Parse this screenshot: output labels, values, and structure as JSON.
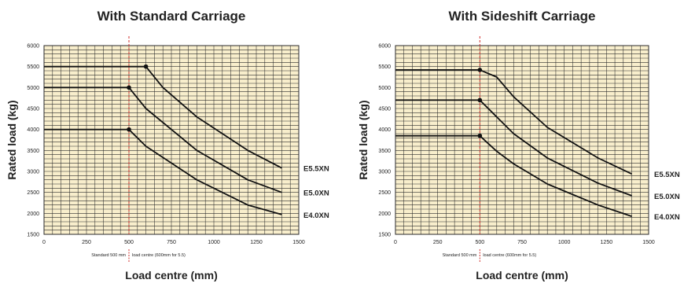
{
  "colors": {
    "plot_bg": "#f8eecc",
    "grid": "#2b2b2b",
    "curve": "#111111",
    "marker": "#111111",
    "ref_line": "#d0312d",
    "text": "#222222"
  },
  "chart_data": [
    {
      "type": "line",
      "title": "With Standard Carriage",
      "xlabel": "Load centre (mm)",
      "ylabel": "Rated load (kg)",
      "xlim": [
        0,
        1500
      ],
      "ylim": [
        1500,
        6000
      ],
      "x_ticks": [
        "0",
        "250",
        "500",
        "750",
        "1000",
        "1250",
        "1500"
      ],
      "y_ticks": [
        "1500",
        "2000",
        "2500",
        "3000",
        "3500",
        "4000",
        "4500",
        "5000",
        "5500",
        "6000"
      ],
      "grid": true,
      "ref_line_x": 500,
      "ref_note_left": "Standard 500 mm",
      "ref_note_right": "load centre (600mm for 5.5)",
      "series": [
        {
          "name": "E5.5XN",
          "points": [
            [
              0,
              5500
            ],
            [
              600,
              5500
            ],
            [
              700,
              5000
            ],
            [
              900,
              4300
            ],
            [
              1200,
              3500
            ],
            [
              1400,
              3080
            ]
          ],
          "marker": [
            600,
            5500
          ]
        },
        {
          "name": "E5.0XN",
          "points": [
            [
              0,
              5000
            ],
            [
              500,
              5000
            ],
            [
              600,
              4500
            ],
            [
              900,
              3500
            ],
            [
              1200,
              2800
            ],
            [
              1400,
              2500
            ]
          ],
          "marker": [
            500,
            5000
          ]
        },
        {
          "name": "E4.0XN",
          "points": [
            [
              0,
              4000
            ],
            [
              500,
              4000
            ],
            [
              600,
              3600
            ],
            [
              900,
              2800
            ],
            [
              1200,
              2200
            ],
            [
              1400,
              1970
            ]
          ],
          "marker": [
            500,
            4000
          ]
        }
      ]
    },
    {
      "type": "line",
      "title": "With Sideshift Carriage",
      "xlabel": "Load centre (mm)",
      "ylabel": "Rated load (kg)",
      "xlim": [
        0,
        1500
      ],
      "ylim": [
        1500,
        6000
      ],
      "x_ticks": [
        "0",
        "250",
        "500",
        "750",
        "1000",
        "1250",
        "1500"
      ],
      "y_ticks": [
        "1500",
        "2000",
        "2500",
        "3000",
        "3500",
        "4000",
        "4500",
        "5000",
        "5500",
        "6000"
      ],
      "grid": true,
      "ref_line_x": 500,
      "ref_note_left": "Standard 500 mm",
      "ref_note_right": "load centre (600mm for 5.5)",
      "series": [
        {
          "name": "E5.5XN",
          "points": [
            [
              0,
              5420
            ],
            [
              500,
              5420
            ],
            [
              600,
              5250
            ],
            [
              700,
              4780
            ],
            [
              900,
              4050
            ],
            [
              1200,
              3320
            ],
            [
              1400,
              2940
            ]
          ],
          "marker": [
            500,
            5420
          ]
        },
        {
          "name": "E5.0XN",
          "points": [
            [
              0,
              4700
            ],
            [
              500,
              4700
            ],
            [
              600,
              4300
            ],
            [
              700,
              3900
            ],
            [
              900,
              3320
            ],
            [
              1200,
              2720
            ],
            [
              1400,
              2420
            ]
          ],
          "marker": [
            500,
            4700
          ]
        },
        {
          "name": "E4.0XN",
          "points": [
            [
              0,
              3850
            ],
            [
              500,
              3850
            ],
            [
              600,
              3480
            ],
            [
              700,
              3180
            ],
            [
              900,
              2700
            ],
            [
              1200,
              2200
            ],
            [
              1400,
              1930
            ]
          ],
          "marker": [
            500,
            3850
          ]
        }
      ]
    }
  ]
}
